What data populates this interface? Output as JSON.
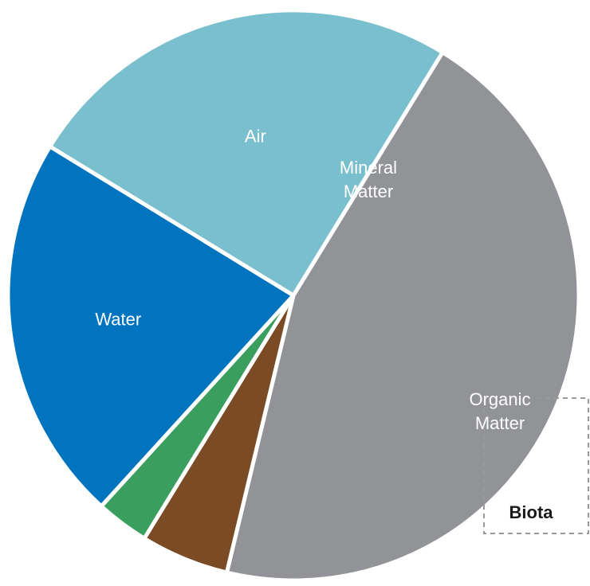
{
  "chart_data": {
    "type": "pie",
    "title": "",
    "slices": [
      {
        "label": "Mineral Matter",
        "value": 45,
        "color": "#929396"
      },
      {
        "label": "Organic Matter",
        "value": 5,
        "color": "#7a4b24"
      },
      {
        "label": "Biota",
        "value": 3,
        "color": "#3a9f5e"
      },
      {
        "label": "Water",
        "value": 22,
        "color": "#0174c0"
      },
      {
        "label": "Air",
        "value": 25,
        "color": "#7abfcd"
      }
    ],
    "start_angle_deg": 301.5,
    "direction": "clockwise",
    "outside_labels": [
      "Biota",
      "Organic Matter"
    ]
  }
}
